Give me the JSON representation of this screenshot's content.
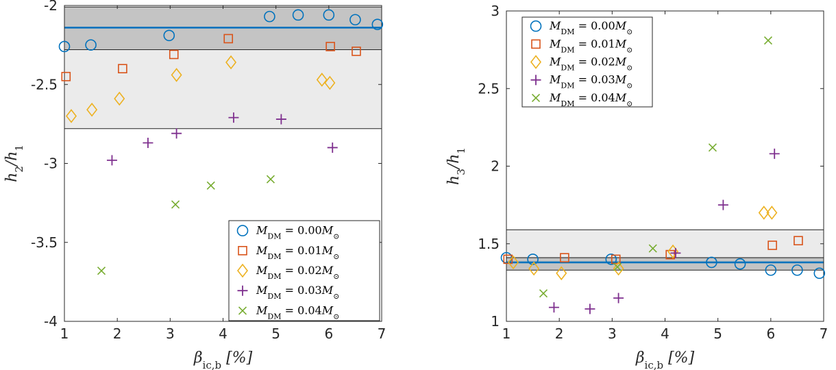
{
  "chart_data": [
    {
      "type": "scatter",
      "xlabel": "β_ic,b  [%]",
      "ylabel": "h_2/h_1",
      "xlim": [
        1,
        7
      ],
      "ylim": [
        -4,
        -2
      ],
      "xticks": [
        1,
        2,
        3,
        4,
        5,
        6,
        7
      ],
      "yticks": [
        -4,
        -3.5,
        -3,
        -2.5,
        -2
      ],
      "ytick_labels": [
        "-4",
        "-3.5",
        "-3",
        "-2.5",
        "-2"
      ],
      "legend_position": "bottom-right",
      "reference": {
        "line": -2.14,
        "dark_band": [
          -2.28,
          -2.01
        ],
        "light_band": [
          -2.78,
          -2.28
        ]
      },
      "series": [
        {
          "name": "M_DM = 0.00M_⊙",
          "marker": "circle",
          "color": "#0072BD",
          "x": [
            1.0,
            1.5,
            2.98,
            4.88,
            5.42,
            6.0,
            6.5,
            6.92
          ],
          "y": [
            -2.26,
            -2.25,
            -2.19,
            -2.07,
            -2.06,
            -2.06,
            -2.09,
            -2.12
          ]
        },
        {
          "name": "M_DM = 0.01M_⊙",
          "marker": "square",
          "color": "#D95319",
          "x": [
            1.03,
            2.1,
            3.07,
            4.1,
            6.03,
            6.52
          ],
          "y": [
            -2.45,
            -2.4,
            -2.31,
            -2.21,
            -2.26,
            -2.29
          ]
        },
        {
          "name": "M_DM = 0.02M_⊙",
          "marker": "diamond",
          "color": "#EDB120",
          "x": [
            1.13,
            1.52,
            2.04,
            3.12,
            4.15,
            5.87,
            6.02
          ],
          "y": [
            -2.7,
            -2.66,
            -2.59,
            -2.44,
            -2.36,
            -2.47,
            -2.49
          ]
        },
        {
          "name": "M_DM = 0.03M_⊙",
          "marker": "plus",
          "color": "#7E2F8E",
          "x": [
            1.9,
            2.58,
            3.12,
            4.2,
            5.1,
            6.07
          ],
          "y": [
            -2.98,
            -2.87,
            -2.81,
            -2.71,
            -2.72,
            -2.9
          ]
        },
        {
          "name": "M_DM = 0.04M_⊙",
          "marker": "x",
          "color": "#77AC30",
          "x": [
            1.7,
            3.1,
            3.77,
            4.9
          ],
          "y": [
            -3.68,
            -3.26,
            -3.14,
            -3.1
          ]
        }
      ]
    },
    {
      "type": "scatter",
      "xlabel": "β_ic,b  [%]",
      "ylabel": "h_3/h_1",
      "xlim": [
        1,
        7
      ],
      "ylim": [
        1,
        3
      ],
      "xticks": [
        1,
        2,
        3,
        4,
        5,
        6,
        7
      ],
      "yticks": [
        1,
        1.5,
        2,
        2.5,
        3
      ],
      "ytick_labels": [
        "1",
        "1.5",
        "2",
        "2.5",
        "3"
      ],
      "legend_position": "top-left",
      "reference": {
        "line": 1.38,
        "dark_band": [
          1.33,
          1.41
        ],
        "light_band": [
          1.41,
          1.59
        ]
      },
      "series": [
        {
          "name": "M_DM = 0.00M_⊙",
          "marker": "circle",
          "color": "#0072BD",
          "x": [
            1.0,
            1.5,
            2.98,
            4.88,
            5.42,
            6.0,
            6.5,
            6.92
          ],
          "y": [
            1.41,
            1.4,
            1.4,
            1.38,
            1.37,
            1.33,
            1.33,
            1.31
          ]
        },
        {
          "name": "M_DM = 0.01M_⊙",
          "marker": "square",
          "color": "#D95319",
          "x": [
            1.03,
            2.1,
            3.07,
            4.1,
            6.03,
            6.52
          ],
          "y": [
            1.4,
            1.41,
            1.4,
            1.43,
            1.49,
            1.52
          ]
        },
        {
          "name": "M_DM = 0.02M_⊙",
          "marker": "diamond",
          "color": "#EDB120",
          "x": [
            1.13,
            1.52,
            2.04,
            3.12,
            4.15,
            5.87,
            6.02
          ],
          "y": [
            1.38,
            1.34,
            1.31,
            1.34,
            1.45,
            1.7,
            1.7
          ]
        },
        {
          "name": "M_DM = 0.03M_⊙",
          "marker": "plus",
          "color": "#7E2F8E",
          "x": [
            1.9,
            2.58,
            3.12,
            4.2,
            5.1,
            6.07
          ],
          "y": [
            1.09,
            1.08,
            1.15,
            1.44,
            1.75,
            2.08
          ]
        },
        {
          "name": "M_DM = 0.04M_⊙",
          "marker": "x",
          "color": "#77AC30",
          "x": [
            1.7,
            3.1,
            3.77,
            4.9,
            5.95
          ],
          "y": [
            1.18,
            1.35,
            1.47,
            2.12,
            2.81
          ]
        }
      ]
    }
  ]
}
